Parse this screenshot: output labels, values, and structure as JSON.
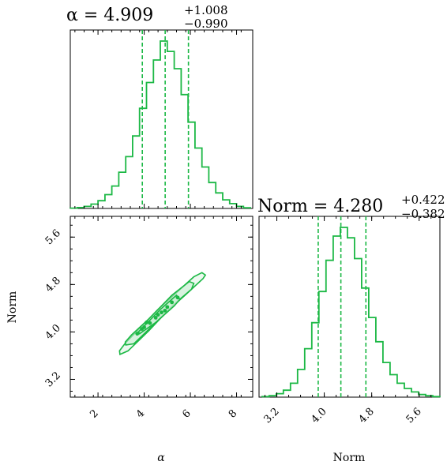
{
  "colors": {
    "accent": "#1cb845",
    "fill_light": "#c9ecd2",
    "axes": "#000000"
  },
  "chart_data": [
    {
      "panel": "alpha-marginal",
      "type": "histogram",
      "parameter": "α",
      "title": {
        "prefix": "α = 4.909",
        "upper": "+1.008",
        "lower": "−0.990"
      },
      "median": 4.909,
      "quantiles": [
        3.919,
        4.909,
        5.917
      ],
      "xlim": [
        0.8,
        8.7
      ],
      "bins": [
        0.8,
        1.1,
        1.4,
        1.7,
        2.0,
        2.3,
        2.6,
        2.9,
        3.2,
        3.5,
        3.8,
        4.1,
        4.4,
        4.7,
        5.0,
        5.3,
        5.6,
        5.9,
        6.2,
        6.5,
        6.8,
        7.1,
        7.4,
        7.7,
        8.0,
        8.3,
        8.6
      ],
      "counts": [
        0.002,
        0.005,
        0.012,
        0.025,
        0.045,
        0.08,
        0.13,
        0.21,
        0.3,
        0.42,
        0.58,
        0.73,
        0.86,
        0.97,
        0.91,
        0.81,
        0.66,
        0.5,
        0.35,
        0.24,
        0.15,
        0.09,
        0.05,
        0.028,
        0.012,
        0.004
      ]
    },
    {
      "panel": "norm-marginal",
      "type": "histogram",
      "parameter": "Norm",
      "title": {
        "prefix": "Norm = 4.280",
        "upper": "+0.422",
        "lower": "−0.382"
      },
      "median": 4.28,
      "quantiles": [
        3.898,
        4.28,
        4.702
      ],
      "xlim": [
        2.9,
        5.95
      ],
      "xticks": [
        "3.2",
        "4.0",
        "4.8",
        "5.6"
      ],
      "xlabel": "Norm",
      "bins": [
        2.95,
        3.07,
        3.19,
        3.31,
        3.43,
        3.55,
        3.67,
        3.79,
        3.91,
        4.03,
        4.15,
        4.27,
        4.39,
        4.51,
        4.63,
        4.75,
        4.87,
        4.99,
        5.11,
        5.23,
        5.35,
        5.47,
        5.59,
        5.71,
        5.83,
        5.95
      ],
      "counts": [
        0.003,
        0.008,
        0.02,
        0.04,
        0.08,
        0.16,
        0.28,
        0.43,
        0.61,
        0.79,
        0.93,
        0.98,
        0.92,
        0.8,
        0.63,
        0.46,
        0.32,
        0.2,
        0.13,
        0.08,
        0.05,
        0.03,
        0.015,
        0.008,
        0.003
      ]
    },
    {
      "panel": "alpha-norm-2d",
      "type": "contour",
      "xlim": [
        0.8,
        8.7
      ],
      "ylim": [
        2.9,
        5.95
      ],
      "xticks": [
        "2",
        "4",
        "6",
        "8"
      ],
      "yticks": [
        "3.2",
        "4.0",
        "4.8",
        "5.6"
      ],
      "xlabel": "α",
      "ylabel": "Norm",
      "contours": [
        {
          "level": "outer",
          "points": [
            [
              2.95,
              3.62
            ],
            [
              3.3,
              3.68
            ],
            [
              4.2,
              4.02
            ],
            [
              5.0,
              4.35
            ],
            [
              5.8,
              4.63
            ],
            [
              6.55,
              4.9
            ],
            [
              6.65,
              4.96
            ],
            [
              6.5,
              5.0
            ],
            [
              6.15,
              4.93
            ],
            [
              5.5,
              4.7
            ],
            [
              4.6,
              4.38
            ],
            [
              3.7,
              4.02
            ],
            [
              3.2,
              3.82
            ],
            [
              2.93,
              3.68
            ]
          ]
        },
        {
          "level": "middle",
          "points": [
            [
              3.2,
              3.78
            ],
            [
              3.55,
              3.8
            ],
            [
              4.4,
              4.12
            ],
            [
              5.3,
              4.47
            ],
            [
              6.05,
              4.72
            ],
            [
              6.15,
              4.82
            ],
            [
              5.95,
              4.85
            ],
            [
              5.2,
              4.62
            ],
            [
              4.2,
              4.22
            ],
            [
              3.45,
              3.95
            ],
            [
              3.18,
              3.83
            ]
          ]
        },
        {
          "level": "inner",
          "points": [
            [
              3.8,
              3.97
            ],
            [
              4.5,
              4.16
            ],
            [
              5.3,
              4.44
            ],
            [
              5.55,
              4.55
            ],
            [
              5.4,
              4.62
            ],
            [
              4.7,
              4.38
            ],
            [
              3.95,
              4.08
            ],
            [
              3.75,
              4.0
            ]
          ]
        }
      ],
      "samples": [
        [
          3.7,
          3.97
        ],
        [
          4.0,
          4.08
        ],
        [
          4.25,
          4.15
        ],
        [
          4.5,
          4.24
        ],
        [
          4.75,
          4.33
        ],
        [
          5.0,
          4.42
        ],
        [
          5.2,
          4.5
        ],
        [
          5.45,
          4.58
        ],
        [
          4.1,
          4.16
        ],
        [
          4.6,
          4.29
        ],
        [
          4.9,
          4.36
        ],
        [
          3.9,
          4.05
        ]
      ]
    }
  ]
}
